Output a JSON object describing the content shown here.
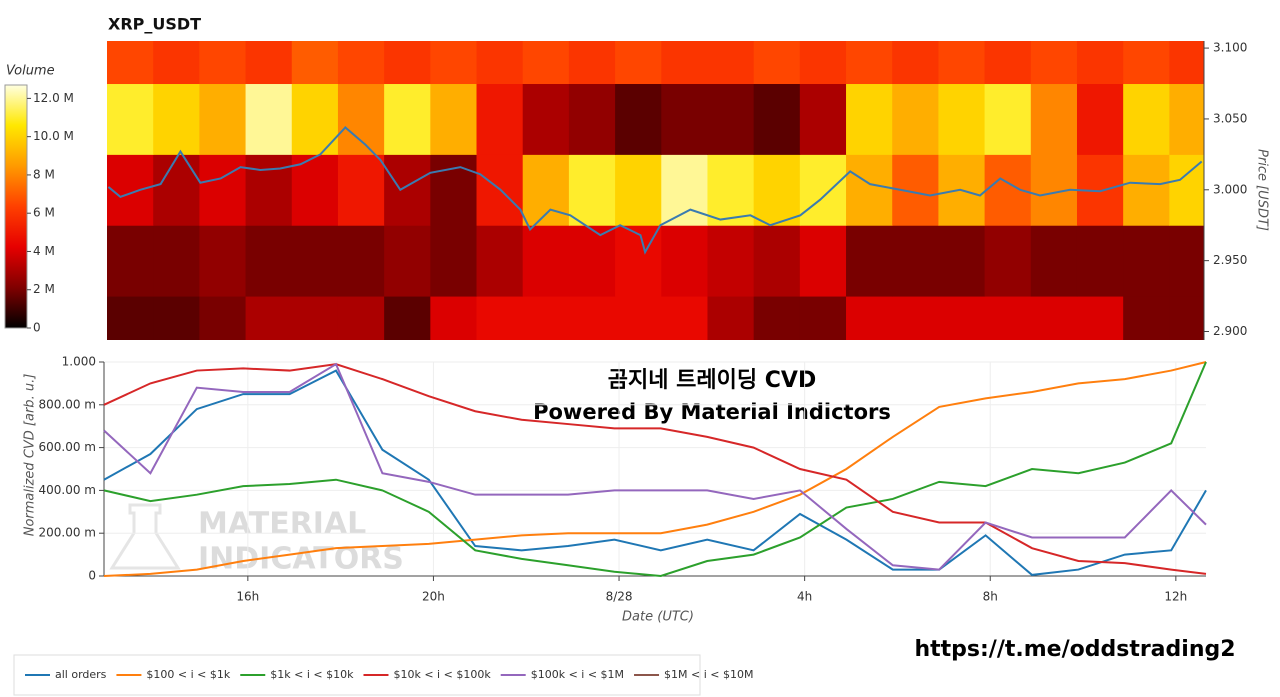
{
  "chart_data": [
    {
      "type": "heatmap",
      "title": "XRP_USDT",
      "colorbar_title": "Volume",
      "y_label": "Price [USDT]",
      "xlim": [
        12.9,
        36.65
      ],
      "ylim": [
        2.894,
        3.105
      ],
      "yticks": [
        {
          "value": 2.9,
          "label": "2.900"
        },
        {
          "value": 2.95,
          "label": "2.950"
        },
        {
          "value": 3.0,
          "label": "3.000"
        },
        {
          "value": 3.05,
          "label": "3.050"
        },
        {
          "value": 3.1,
          "label": "3.100"
        }
      ],
      "x_edges": [
        12.9,
        13.9,
        14.9,
        15.9,
        16.9,
        17.9,
        18.9,
        19.9,
        20.9,
        21.9,
        22.9,
        23.9,
        24.9,
        25.9,
        26.9,
        27.9,
        28.9,
        29.9,
        30.9,
        31.9,
        32.9,
        33.9,
        34.9,
        35.9,
        36.65
      ],
      "y_edges": [
        2.875,
        2.925,
        2.975,
        3.025,
        3.075,
        3.125
      ],
      "z": [
        [
          1.5,
          1.5,
          2,
          3,
          3,
          3,
          1.5,
          4,
          4.5,
          4.5,
          4.5,
          4.5,
          4.5,
          3,
          2,
          2,
          4,
          4,
          4,
          4,
          4,
          4,
          2,
          2
        ],
        [
          2,
          2,
          2.5,
          2,
          2,
          2,
          2.5,
          2,
          3,
          4,
          4,
          4.5,
          4,
          3.5,
          3,
          4,
          2,
          2,
          2,
          2.5,
          2,
          2,
          2,
          2
        ],
        [
          4,
          3,
          4,
          3,
          4,
          5,
          3,
          2,
          5,
          9,
          11,
          10,
          12,
          11,
          10,
          11,
          9,
          7,
          9,
          7,
          8,
          6,
          9,
          10
        ],
        [
          11,
          10,
          9,
          12,
          10,
          8,
          11,
          9,
          5,
          3,
          2.5,
          1.5,
          2,
          2,
          1.5,
          3,
          10,
          9,
          10,
          11,
          8,
          5,
          10,
          9
        ],
        [
          6.5,
          6,
          6.5,
          6,
          7,
          6.5,
          6,
          6.5,
          6,
          6.5,
          6,
          6.5,
          6,
          6,
          6.5,
          6,
          6.5,
          6,
          6.5,
          6,
          6.5,
          6,
          6.5,
          6
        ]
      ],
      "zlim": [
        0,
        12.7
      ],
      "zticks": [
        0,
        {
          "value": 2,
          "label": "2 M"
        },
        {
          "value": 4,
          "label": "4 M"
        },
        {
          "value": 6,
          "label": "6 M"
        },
        {
          "value": 8,
          "label": "8 M"
        },
        {
          "value": 10,
          "label": "10.0 M"
        },
        {
          "value": 12,
          "label": "12.0 M"
        }
      ],
      "colormap": [
        "#000000",
        "#800000",
        "#e60000",
        "#ff4000",
        "#ff9a00",
        "#ffe800",
        "#ffffe0"
      ],
      "series": [
        {
          "color": "#3a7bb0",
          "x": [
            12.93,
            13.19,
            13.62,
            14.06,
            14.49,
            14.92,
            15.36,
            15.79,
            16.22,
            16.65,
            17.09,
            17.52,
            18.06,
            18.49,
            18.82,
            19.25,
            19.9,
            20.55,
            20.98,
            21.42,
            21.85,
            22.06,
            22.5,
            22.93,
            23.58,
            24.01,
            24.45,
            24.55,
            24.88,
            25.53,
            26.18,
            26.83,
            27.26,
            27.91,
            28.34,
            28.99,
            29.42,
            30.07,
            30.72,
            31.37,
            31.8,
            32.24,
            32.67,
            33.1,
            33.75,
            34.4,
            35.05,
            35.7,
            36.13,
            36.6
          ],
          "values": [
            3.002,
            2.995,
            3.0,
            3.004,
            3.027,
            3.005,
            3.008,
            3.016,
            3.014,
            3.015,
            3.018,
            3.025,
            3.044,
            3.032,
            3.021,
            3.0,
            3.012,
            3.016,
            3.011,
            3.0,
            2.986,
            2.972,
            2.986,
            2.982,
            2.968,
            2.975,
            2.968,
            2.956,
            2.975,
            2.986,
            2.979,
            2.982,
            2.975,
            2.982,
            2.993,
            3.013,
            3.004,
            3.0,
            2.996,
            3.0,
            2.996,
            3.008,
            3.0,
            2.996,
            3.0,
            2.999,
            3.005,
            3.004,
            3.007,
            3.02
          ]
        }
      ]
    },
    {
      "type": "line",
      "x_label": "Date (UTC)",
      "y_label": "Normalized CVD [arb. u.]",
      "annotations": [
        "곰지네 트레이딩 CVD",
        "Powered By Material Indictors"
      ],
      "xlim": [
        12.9,
        36.65
      ],
      "xticks": [
        {
          "value": 16,
          "label": "16h"
        },
        {
          "value": 20,
          "label": "20h"
        },
        {
          "value": 24,
          "label": "8/28"
        },
        {
          "value": 28,
          "label": "4h"
        },
        {
          "value": 32,
          "label": "8h"
        },
        {
          "value": 36,
          "label": "12h"
        }
      ],
      "ylim": [
        0,
        1
      ],
      "yticks": [
        0,
        {
          "value": 0.2,
          "label": "200.00 m"
        },
        {
          "value": 0.4,
          "label": "400.00 m"
        },
        {
          "value": 0.6,
          "label": "600.00 m"
        },
        {
          "value": 0.8,
          "label": "800.00 m"
        },
        {
          "value": 1,
          "label": "1.000"
        }
      ],
      "grid": true,
      "legend": "bottom",
      "x": [
        12.9,
        13.9,
        14.9,
        15.9,
        16.9,
        17.9,
        18.9,
        19.9,
        20.9,
        21.9,
        22.9,
        23.9,
        24.9,
        25.9,
        26.9,
        27.9,
        28.9,
        29.9,
        30.9,
        31.9,
        32.9,
        33.9,
        34.9,
        35.9,
        36.65
      ],
      "series": [
        {
          "name": "all orders",
          "color": "#1f77b4",
          "values": [
            0.45,
            0.57,
            0.78,
            0.85,
            0.85,
            0.96,
            0.59,
            0.45,
            0.14,
            0.12,
            0.14,
            0.17,
            0.12,
            0.17,
            0.12,
            0.29,
            0.17,
            0.03,
            0.03,
            0.19,
            0.005,
            0.03,
            0.1,
            0.12,
            0.4
          ]
        },
        {
          "name": "$100 < i < $1k",
          "color": "#ff7f0e",
          "values": [
            0,
            0.01,
            0.03,
            0.07,
            0.1,
            0.13,
            0.14,
            0.15,
            0.17,
            0.19,
            0.2,
            0.2,
            0.2,
            0.24,
            0.3,
            0.38,
            0.5,
            0.65,
            0.79,
            0.83,
            0.86,
            0.9,
            0.92,
            0.96,
            1.0
          ]
        },
        {
          "name": "$1k < i < $10k",
          "color": "#2ca02c",
          "values": [
            0.4,
            0.35,
            0.38,
            0.42,
            0.43,
            0.45,
            0.4,
            0.3,
            0.12,
            0.08,
            0.05,
            0.02,
            0.0,
            0.07,
            0.1,
            0.18,
            0.32,
            0.36,
            0.44,
            0.42,
            0.5,
            0.48,
            0.53,
            0.62,
            1.0
          ]
        },
        {
          "name": "$10k < i < $100k",
          "color": "#d62728",
          "values": [
            0.8,
            0.9,
            0.96,
            0.97,
            0.96,
            0.99,
            0.92,
            0.84,
            0.77,
            0.73,
            0.71,
            0.69,
            0.69,
            0.65,
            0.6,
            0.5,
            0.45,
            0.3,
            0.25,
            0.25,
            0.13,
            0.07,
            0.06,
            0.03,
            0.01
          ]
        },
        {
          "name": "$100k < i < $1M",
          "color": "#9467bd",
          "values": [
            0.68,
            0.48,
            0.88,
            0.86,
            0.86,
            0.99,
            0.48,
            0.44,
            0.38,
            0.38,
            0.38,
            0.4,
            0.4,
            0.4,
            0.36,
            0.4,
            0.22,
            0.05,
            0.03,
            0.25,
            0.18,
            0.18,
            0.18,
            0.4,
            0.24
          ]
        },
        {
          "name": "$1M < i < $10M",
          "color": "#8c564b",
          "values": [
            null,
            null,
            null,
            null,
            null,
            null,
            null,
            null,
            null,
            null,
            null,
            null,
            null,
            null,
            null,
            null,
            null,
            null,
            null,
            null,
            null,
            null,
            null,
            null,
            null
          ]
        }
      ]
    }
  ],
  "watermark": [
    "MATERIAL",
    "INDICATORS"
  ],
  "link": "https://t.me/oddstrading2"
}
